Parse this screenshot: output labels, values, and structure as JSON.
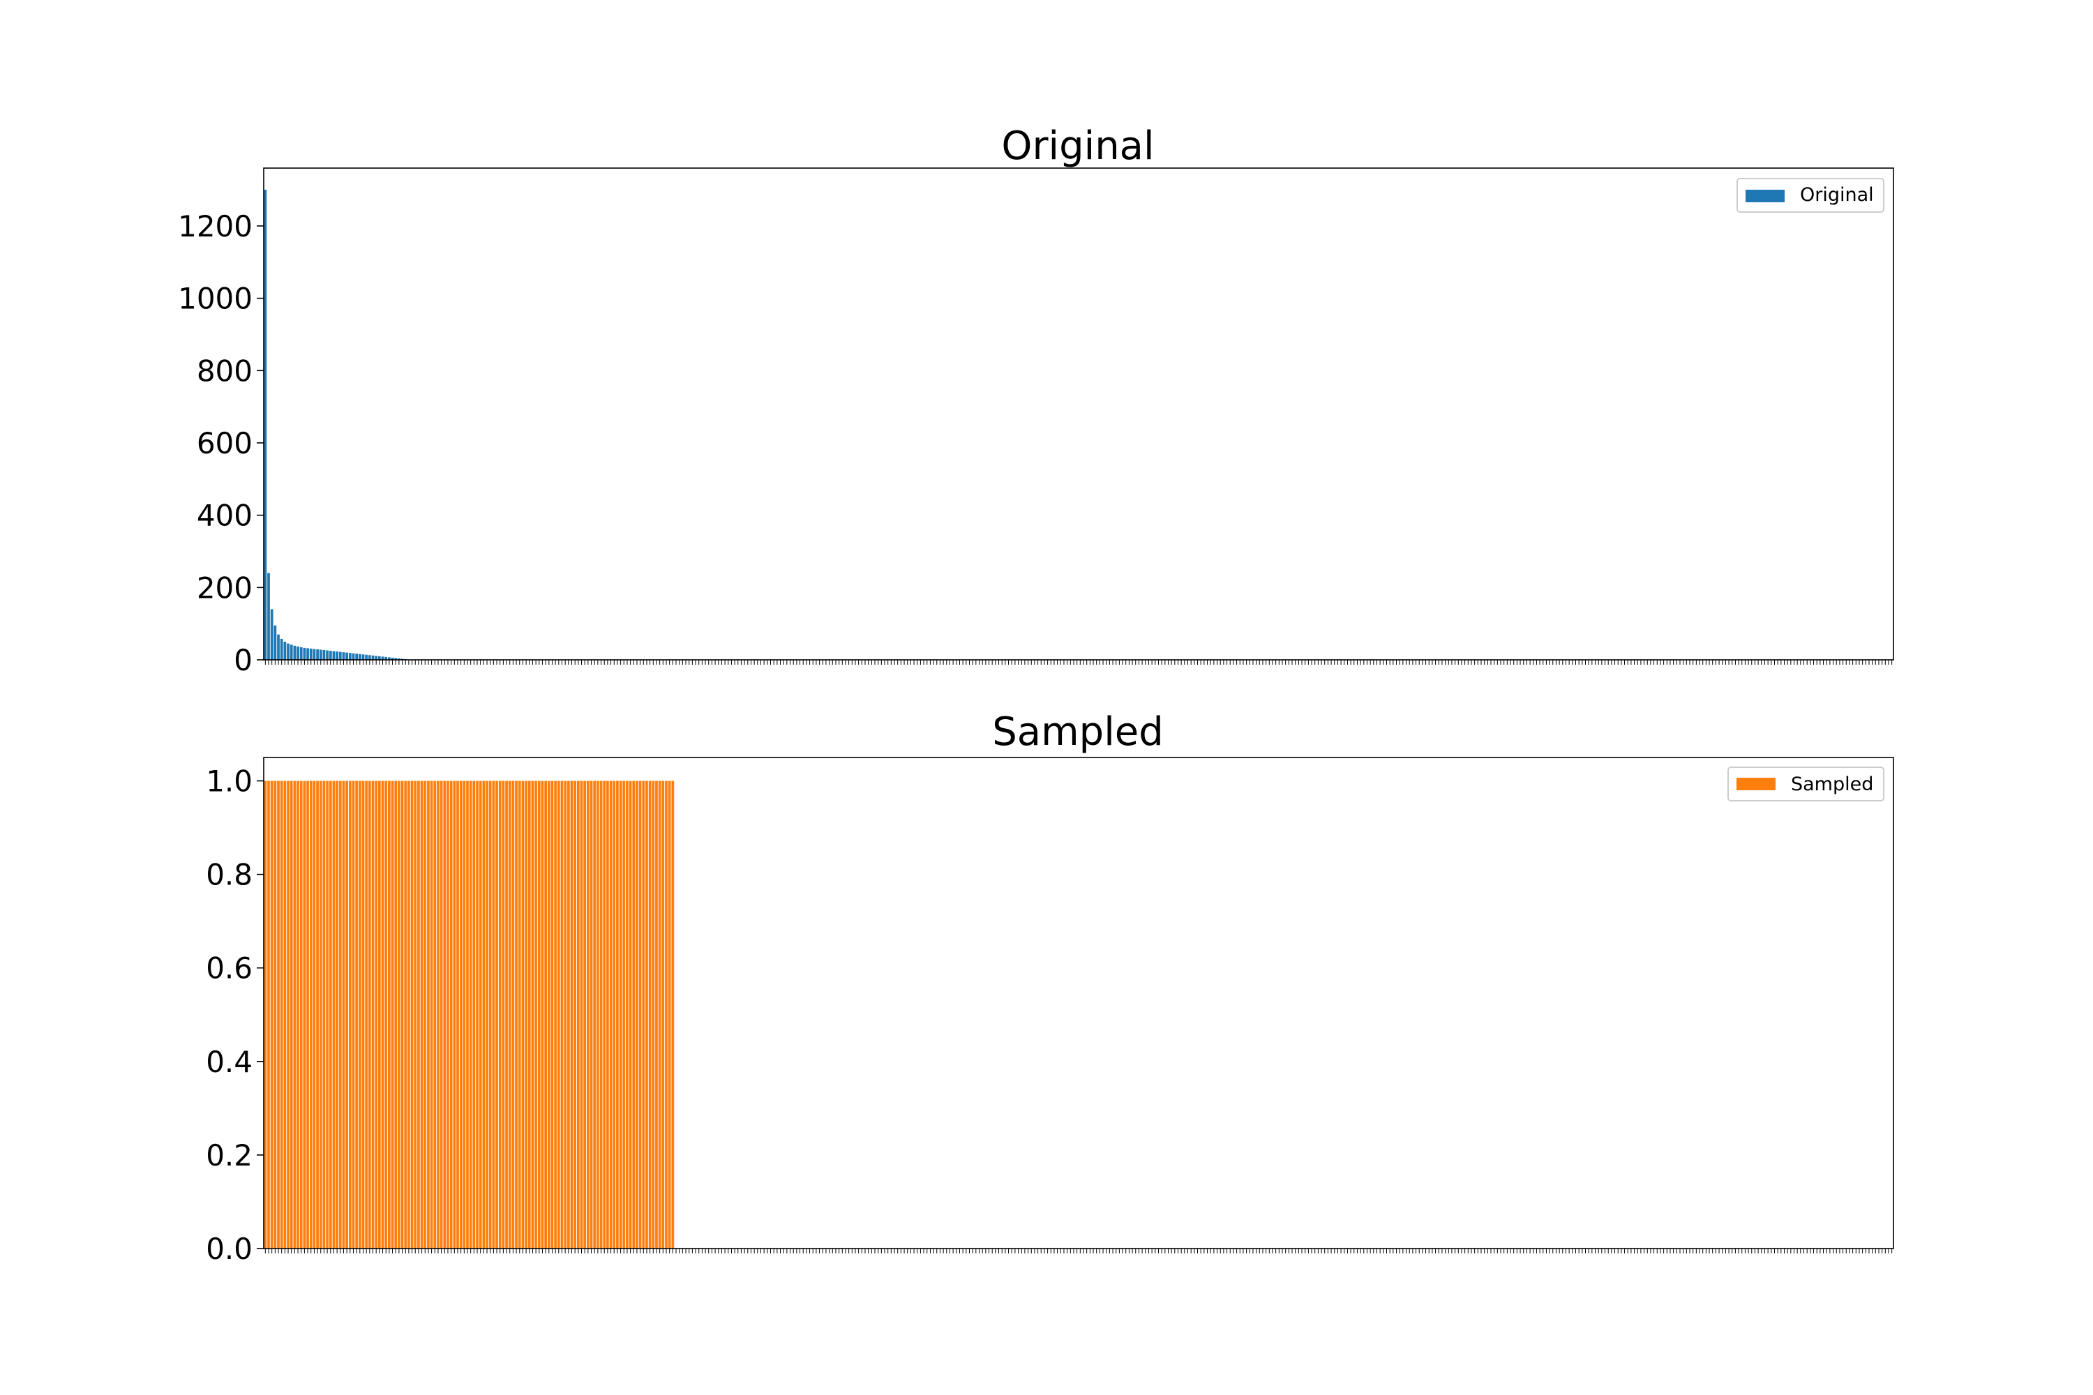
{
  "chart_data": [
    {
      "type": "bar",
      "title": "Original",
      "xlabel": "",
      "ylabel": "",
      "ylim": [
        0,
        1360
      ],
      "yticks": [
        0,
        200,
        400,
        600,
        800,
        1000,
        1200
      ],
      "ytick_labels": [
        "0",
        "200",
        "400",
        "600",
        "800",
        "1000",
        "1200"
      ],
      "grid": false,
      "legend_position": "top-right",
      "series": [
        {
          "name": "Original",
          "color": "#1f77b4",
          "category_count": 500,
          "values": [
            1300,
            240,
            140,
            95,
            70,
            58,
            50,
            45,
            42,
            39,
            37,
            35,
            33,
            32,
            31,
            30,
            29,
            28,
            27,
            26,
            25,
            24,
            23,
            22,
            21,
            20,
            19,
            18,
            17,
            16,
            15,
            14,
            13,
            12,
            11,
            10,
            9,
            8,
            7,
            6,
            5,
            4,
            3,
            2,
            1
          ]
        }
      ]
    },
    {
      "type": "bar",
      "title": "Sampled",
      "xlabel": "",
      "ylabel": "",
      "ylim": [
        0,
        1.05
      ],
      "yticks": [
        0,
        0.2,
        0.4,
        0.6,
        0.8,
        1.0
      ],
      "ytick_labels": [
        "0.0",
        "0.2",
        "0.4",
        "0.6",
        "0.8",
        "1.0"
      ],
      "grid": false,
      "legend_position": "top-right",
      "series": [
        {
          "name": "Sampled",
          "color": "#ff7f0e",
          "category_count": 500,
          "nonzero_count": 126,
          "value": 1.0
        }
      ]
    }
  ]
}
